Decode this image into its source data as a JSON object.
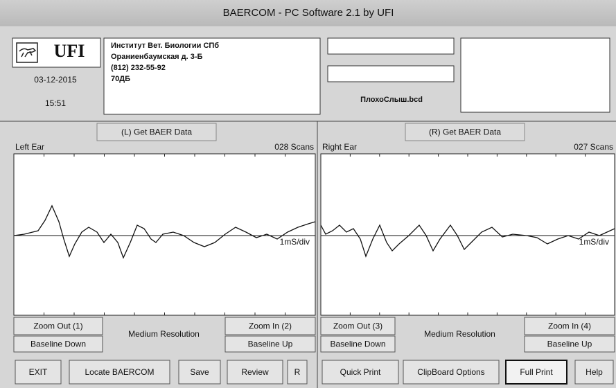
{
  "window": {
    "title": "BAERCOM - PC Software 2.1  by UFI"
  },
  "header": {
    "logo": "UFI",
    "date": "03-12-2015",
    "time": "15:51",
    "address": [
      "Институт Вет. Биологии СПб",
      "Ораниенбаумская д. 3-Б",
      "(812) 232-55-92",
      "70ДБ"
    ],
    "file": "ПлохоСлыш.bcd"
  },
  "panels": [
    {
      "button": "(L) Get BAER Data",
      "label": "Left Ear",
      "scans": "028 Scans",
      "scale": "1mS/div",
      "zoom_out": "Zoom Out (1)",
      "baseline_down": "Baseline Down",
      "resolution": "Medium Resolution",
      "zoom_in": "Zoom In (2)",
      "baseline_up": "Baseline Up"
    },
    {
      "button": "(R) Get BAER Data",
      "label": "Right Ear",
      "scans": "027 Scans",
      "scale": "1mS/div",
      "zoom_out": "Zoom Out (3)",
      "baseline_down": "Baseline Down",
      "resolution": "Medium Resolution",
      "zoom_in": "Zoom In (4)",
      "baseline_up": "Baseline Up"
    }
  ],
  "toolbar": [
    "EXIT",
    "Locate BAERCOM",
    "Save",
    "Review",
    "R",
    "Quick Print",
    "ClipBoard Options",
    "Full Print",
    "Help"
  ]
}
